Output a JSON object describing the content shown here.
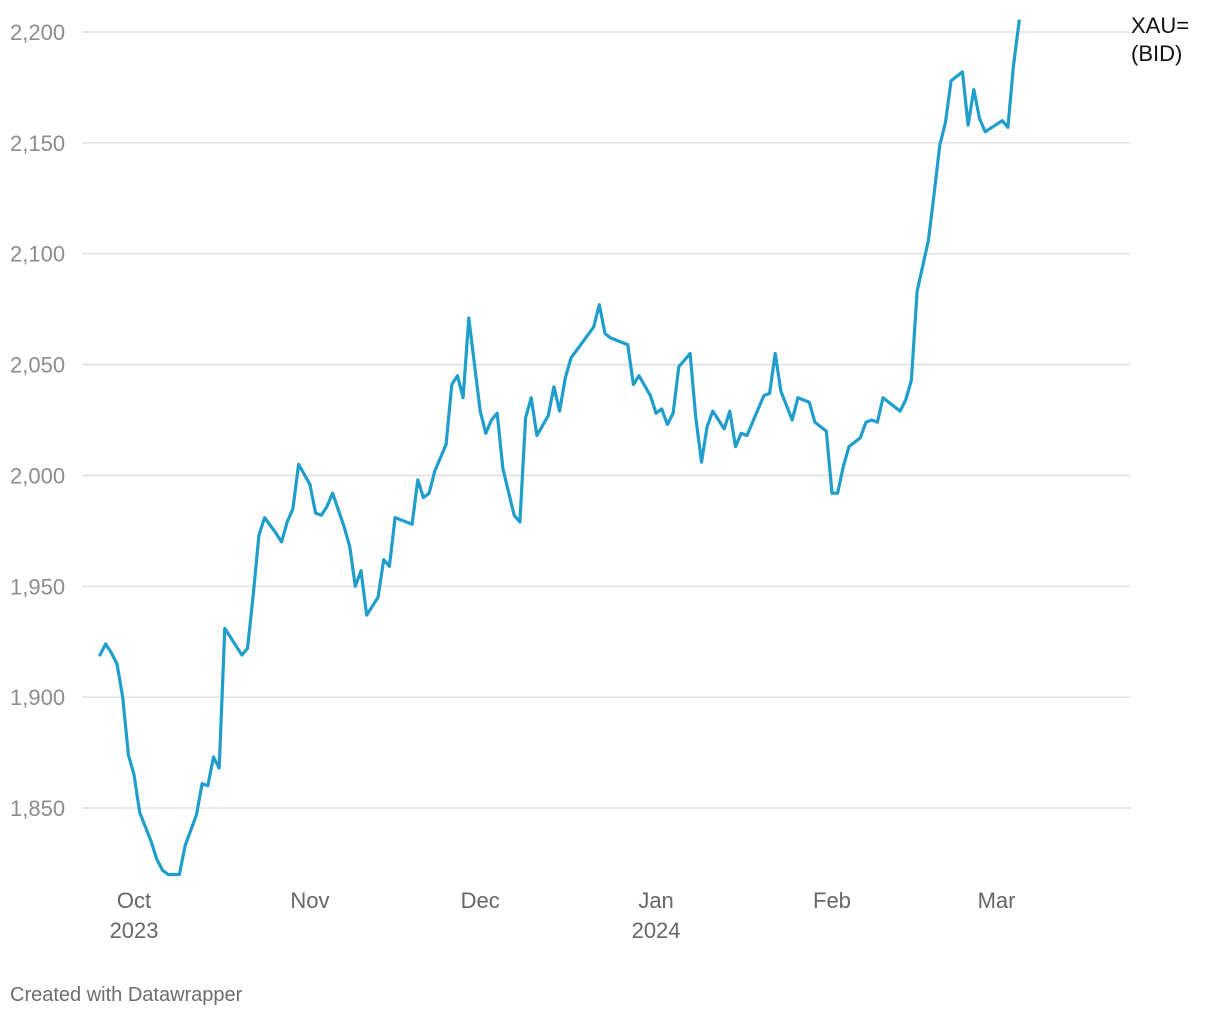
{
  "chart_data": {
    "type": "line",
    "series_name": "XAU=\n(BID)",
    "series_label_lines": [
      "XAU=",
      "(BID)"
    ],
    "ylim": [
      1820,
      2200
    ],
    "yticks": [
      1850,
      1900,
      1950,
      2000,
      2050,
      2100,
      2150,
      2200
    ],
    "ytick_labels": [
      "1,850",
      "1,900",
      "1,950",
      "2,000",
      "2,050",
      "2,100",
      "2,150",
      "2,200"
    ],
    "xlim": [
      "2023-09-25",
      "2024-03-21"
    ],
    "xticks": [
      {
        "date": "2023-10-01",
        "label": "Oct",
        "sublabel": "2023"
      },
      {
        "date": "2023-11-01",
        "label": "Nov",
        "sublabel": ""
      },
      {
        "date": "2023-12-01",
        "label": "Dec",
        "sublabel": ""
      },
      {
        "date": "2024-01-01",
        "label": "Jan",
        "sublabel": "2024"
      },
      {
        "date": "2024-02-01",
        "label": "Feb",
        "sublabel": ""
      },
      {
        "date": "2024-03-01",
        "label": "Mar",
        "sublabel": ""
      }
    ],
    "grid": true,
    "color": "#1f9ecb",
    "points": [
      [
        "2023-09-25",
        1919
      ],
      [
        "2023-09-26",
        1924
      ],
      [
        "2023-09-27",
        1920
      ],
      [
        "2023-09-28",
        1915
      ],
      [
        "2023-09-29",
        1900
      ],
      [
        "2023-09-30",
        1874
      ],
      [
        "2023-10-01",
        1865
      ],
      [
        "2023-10-02",
        1848
      ],
      [
        "2023-10-04",
        1835
      ],
      [
        "2023-10-05",
        1827
      ],
      [
        "2023-10-06",
        1822
      ],
      [
        "2023-10-07",
        1820
      ],
      [
        "2023-10-09",
        1820
      ],
      [
        "2023-10-10",
        1833
      ],
      [
        "2023-10-12",
        1847
      ],
      [
        "2023-10-13",
        1861
      ],
      [
        "2023-10-14",
        1860
      ],
      [
        "2023-10-15",
        1873
      ],
      [
        "2023-10-16",
        1868
      ],
      [
        "2023-10-17",
        1931
      ],
      [
        "2023-10-20",
        1919
      ],
      [
        "2023-10-21",
        1922
      ],
      [
        "2023-10-22",
        1946
      ],
      [
        "2023-10-23",
        1973
      ],
      [
        "2023-10-24",
        1981
      ],
      [
        "2023-10-26",
        1974
      ],
      [
        "2023-10-27",
        1970
      ],
      [
        "2023-10-28",
        1979
      ],
      [
        "2023-10-29",
        1985
      ],
      [
        "2023-10-30",
        2005
      ],
      [
        "2023-11-01",
        1996
      ],
      [
        "2023-11-02",
        1983
      ],
      [
        "2023-11-03",
        1982
      ],
      [
        "2023-11-04",
        1986
      ],
      [
        "2023-11-05",
        1992
      ],
      [
        "2023-11-07",
        1977
      ],
      [
        "2023-11-08",
        1968
      ],
      [
        "2023-11-09",
        1950
      ],
      [
        "2023-11-10",
        1957
      ],
      [
        "2023-11-11",
        1937
      ],
      [
        "2023-11-13",
        1945
      ],
      [
        "2023-11-14",
        1962
      ],
      [
        "2023-11-15",
        1959
      ],
      [
        "2023-11-16",
        1981
      ],
      [
        "2023-11-19",
        1978
      ],
      [
        "2023-11-20",
        1998
      ],
      [
        "2023-11-21",
        1990
      ],
      [
        "2023-11-22",
        1992
      ],
      [
        "2023-11-23",
        2002
      ],
      [
        "2023-11-25",
        2014
      ],
      [
        "2023-11-26",
        2041
      ],
      [
        "2023-11-27",
        2045
      ],
      [
        "2023-11-28",
        2035
      ],
      [
        "2023-11-29",
        2071
      ],
      [
        "2023-11-30",
        2050
      ],
      [
        "2023-12-01",
        2029
      ],
      [
        "2023-12-02",
        2019
      ],
      [
        "2023-12-03",
        2025
      ],
      [
        "2023-12-04",
        2028
      ],
      [
        "2023-12-05",
        2003
      ],
      [
        "2023-12-07",
        1982
      ],
      [
        "2023-12-08",
        1979
      ],
      [
        "2023-12-09",
        2026
      ],
      [
        "2023-12-10",
        2035
      ],
      [
        "2023-12-11",
        2018
      ],
      [
        "2023-12-13",
        2027
      ],
      [
        "2023-12-14",
        2040
      ],
      [
        "2023-12-15",
        2029
      ],
      [
        "2023-12-16",
        2044
      ],
      [
        "2023-12-17",
        2053
      ],
      [
        "2023-12-21",
        2067
      ],
      [
        "2023-12-22",
        2077
      ],
      [
        "2023-12-23",
        2064
      ],
      [
        "2023-12-24",
        2062
      ],
      [
        "2023-12-27",
        2059
      ],
      [
        "2023-12-28",
        2041
      ],
      [
        "2023-12-29",
        2045
      ],
      [
        "2023-12-31",
        2036
      ],
      [
        "2024-01-01",
        2028
      ],
      [
        "2024-01-02",
        2030
      ],
      [
        "2024-01-03",
        2023
      ],
      [
        "2024-01-04",
        2028
      ],
      [
        "2024-01-05",
        2049
      ],
      [
        "2024-01-07",
        2055
      ],
      [
        "2024-01-08",
        2026
      ],
      [
        "2024-01-09",
        2006
      ],
      [
        "2024-01-10",
        2022
      ],
      [
        "2024-01-11",
        2029
      ],
      [
        "2024-01-13",
        2021
      ],
      [
        "2024-01-14",
        2029
      ],
      [
        "2024-01-15",
        2013
      ],
      [
        "2024-01-16",
        2019
      ],
      [
        "2024-01-17",
        2018
      ],
      [
        "2024-01-20",
        2036
      ],
      [
        "2024-01-21",
        2037
      ],
      [
        "2024-01-22",
        2055
      ],
      [
        "2024-01-23",
        2038
      ],
      [
        "2024-01-25",
        2025
      ],
      [
        "2024-01-26",
        2035
      ],
      [
        "2024-01-28",
        2033
      ],
      [
        "2024-01-29",
        2024
      ],
      [
        "2024-01-31",
        2020
      ],
      [
        "2024-02-01",
        1992
      ],
      [
        "2024-02-02",
        1992
      ],
      [
        "2024-02-03",
        2004
      ],
      [
        "2024-02-04",
        2013
      ],
      [
        "2024-02-06",
        2017
      ],
      [
        "2024-02-07",
        2024
      ],
      [
        "2024-02-08",
        2025
      ],
      [
        "2024-02-09",
        2024
      ],
      [
        "2024-02-10",
        2035
      ],
      [
        "2024-02-13",
        2029
      ],
      [
        "2024-02-14",
        2034
      ],
      [
        "2024-02-15",
        2043
      ],
      [
        "2024-02-16",
        2083
      ],
      [
        "2024-02-18",
        2106
      ],
      [
        "2024-02-19",
        2127
      ],
      [
        "2024-02-20",
        2149
      ],
      [
        "2024-02-21",
        2159
      ],
      [
        "2024-02-22",
        2178
      ],
      [
        "2024-02-24",
        2182
      ],
      [
        "2024-02-25",
        2158
      ],
      [
        "2024-02-26",
        2174
      ],
      [
        "2024-02-27",
        2161
      ],
      [
        "2024-02-28",
        2155
      ],
      [
        "2024-03-02",
        2160
      ],
      [
        "2024-03-03",
        2157
      ],
      [
        "2024-03-04",
        2185
      ],
      [
        "2024-03-05",
        2205
      ]
    ]
  },
  "footer": {
    "credit": "Created with Datawrapper"
  }
}
